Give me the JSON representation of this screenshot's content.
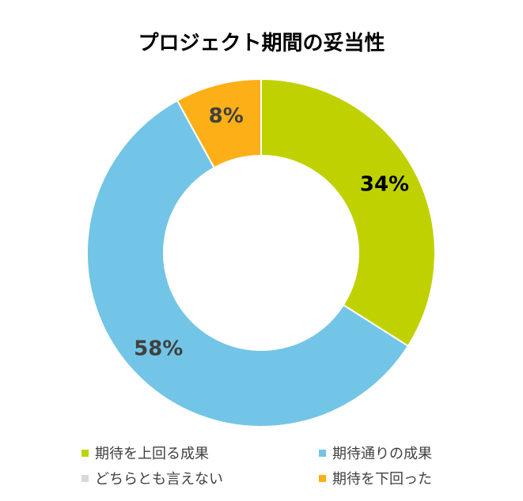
{
  "chart_data": {
    "type": "pie",
    "title": "プロジェクト期間の妥当性",
    "donut": true,
    "categories": [
      "期待を上回る成果",
      "期待通りの成果",
      "どちらとも言えない",
      "期待を下回った"
    ],
    "values": [
      34,
      58,
      0,
      8
    ],
    "data_labels": [
      "34%",
      "58%",
      "",
      "8%"
    ],
    "colors": [
      "#BFD200",
      "#72C5E6",
      "#D9D9D9",
      "#FDAF17"
    ],
    "legend_position": "bottom"
  },
  "label_colors": [
    "#000000",
    "#404040",
    "#404040",
    "#404040"
  ]
}
